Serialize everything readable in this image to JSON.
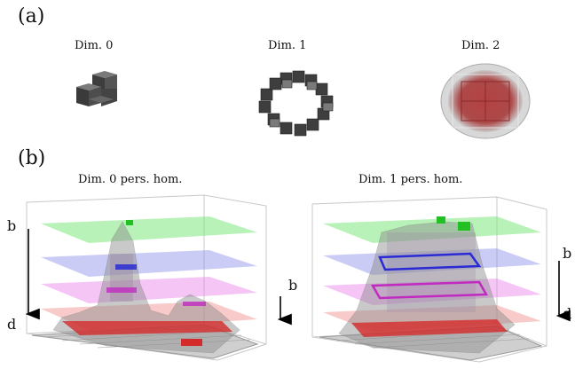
{
  "panel_a": {
    "label": "(a)",
    "examples": [
      {
        "label": "Dim. 0",
        "shape": "voxel-l-cluster"
      },
      {
        "label": "Dim. 1",
        "shape": "voxel-ring"
      },
      {
        "label": "Dim. 2",
        "shape": "voxel-shell-sphere"
      }
    ]
  },
  "panel_b": {
    "label": "(b)",
    "plots": [
      {
        "title": "Dim. 0 pers. hom.",
        "arrow_start": "b",
        "arrow_end": "d",
        "second_arrow_start": "b"
      },
      {
        "title": "Dim. 1 pers. hom.",
        "arrow_start": "b",
        "arrow_end": "d"
      }
    ],
    "layer_colors": {
      "green": "#7ee87e",
      "blue": "#8a8ee8",
      "magenta": "#e77ee8",
      "red": "#f08a8a"
    }
  }
}
